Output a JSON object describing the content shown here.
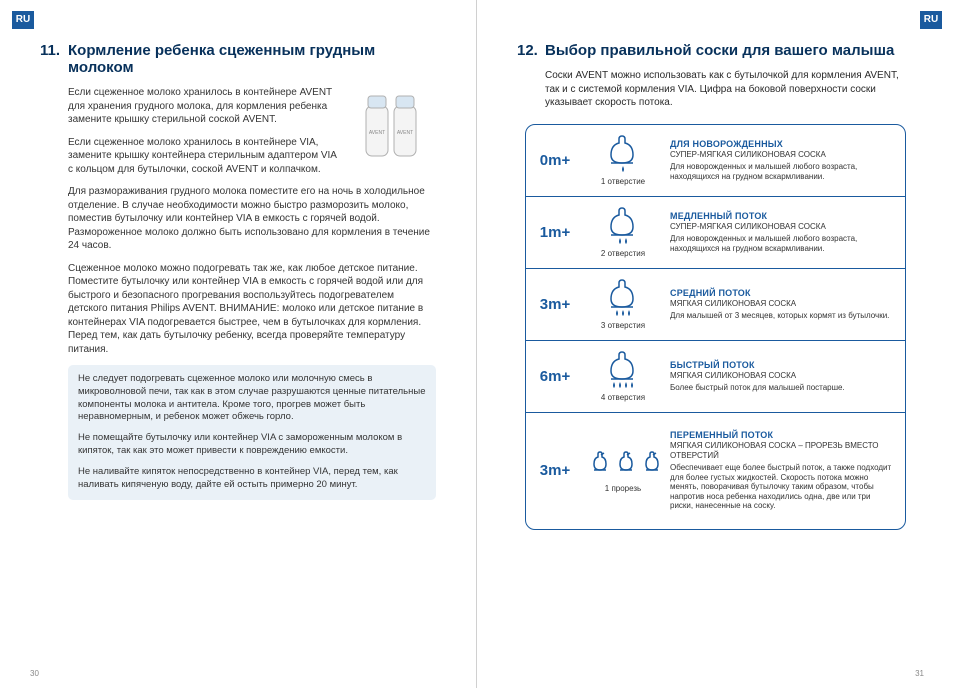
{
  "lang_badge": "RU",
  "pages": {
    "left_num": "30",
    "right_num": "31"
  },
  "colors": {
    "brand": "#1a5a9e",
    "heading": "#08315b",
    "box_bg": "#eaf1f7"
  },
  "left": {
    "section_num": "11.",
    "section_title": "Кормление ребенка сцеженным грудным молоком",
    "p1": "Если сцеженное молоко хранилось в контейнере AVENT для хранения грудного молока, для кормления ребенка замените крышку стерильной соской AVENT.",
    "p2": "Если сцеженное молоко хранилось в контейнере VIA, замените крышку контейнера стерильным адаптером VIA с кольцом для бутылочки, соской AVENT и колпачком.",
    "p3": "Для размораживания грудного молока поместите его на ночь в холодильное отделение. В случае необходимости можно быстро разморозить молоко, поместив бутылочку или контейнер VIA в емкость с горячей водой. Размороженное молоко должно быть использовано для кормления в течение 24 часов.",
    "p4": "Сцеженное молоко можно подогревать так же, как любое детское питание. Поместите бутылочку или контейнер VIA в емкость с горячей водой или для быстрого и безопасного прогревания воспользуйтесь подогревателем детского питания Philips AVENT. ВНИМАНИЕ: молоко или детское питание в контейнерах VIA подогревается быстрее, чем в бутылочках для кормления. Перед тем, как дать бутылочку ребенку, всегда проверяйте температуру питания.",
    "warn1": "Не следует подогревать сцеженное молоко или молочную смесь в микроволновой печи, так как в этом случае разрушаются ценные питательные компоненты молока и антитела. Кроме того, прогрев может быть неравномерным, и ребенок может обжечь горло.",
    "warn2": "Не помещайте бутылочку или контейнер VIA с замороженным молоком в кипяток, так как это может привести к повреждению емкости.",
    "warn3": "Не наливайте кипяток непосредственно в контейнер VIA, перед тем, как наливать кипяченую воду, дайте ей остыть примерно 20 минут."
  },
  "right": {
    "section_num": "12.",
    "section_title": "Выбор правильной соски для вашего малыша",
    "intro": "Соски AVENT можно использовать как с бутылочкой для кормления AVENT, так и с системой кормления VIA. Цифра на боковой поверхности соски указывает скорость потока.",
    "rows": [
      {
        "age": "0m+",
        "holes_label": "1 отверстие",
        "drops": 1,
        "title": "ДЛЯ НОВОРОЖДЕННЫХ",
        "sub": "СУПЕР-МЯГКАЯ СИЛИКОНОВАЯ СОСКА",
        "text": "Для новорожденных и малышей любого возраста, находящихся на грудном вскармливании."
      },
      {
        "age": "1m+",
        "holes_label": "2 отверстия",
        "drops": 2,
        "title": "МЕДЛЕННЫЙ ПОТОК",
        "sub": "СУПЕР-МЯГКАЯ СИЛИКОНОВАЯ СОСКА",
        "text": "Для новорожденных и малышей любого возраста, находящихся на грудном вскармливании."
      },
      {
        "age": "3m+",
        "holes_label": "3 отверстия",
        "drops": 3,
        "title": "СРЕДНИЙ ПОТОК",
        "sub": "МЯГКАЯ СИЛИКОНОВАЯ СОСКА",
        "text": "Для малышей от 3 месяцев, которых кормят из бутылочки."
      },
      {
        "age": "6m+",
        "holes_label": "4 отверстия",
        "drops": 4,
        "title": "БЫСТРЫЙ ПОТОК",
        "sub": "МЯГКАЯ СИЛИКОНОВАЯ СОСКА",
        "text": "Более быстрый поток для малышей постарше."
      },
      {
        "age": "3m+",
        "holes_label": "1 прорезь",
        "drops": 0,
        "multi": 3,
        "title": "ПЕРЕМЕННЫЙ ПОТОК",
        "sub": "МЯГКАЯ СИЛИКОНОВАЯ СОСКА – ПРОРЕЗЬ ВМЕСТО ОТВЕРСТИЙ",
        "text": "Обеспечивает еще более быстрый поток, а также подходит для более густых жидкостей. Скорость потока можно менять, поворачивая бутылочку таким образом, чтобы напротив носа ребенка находились одна, две или три риски, нанесенные на соску."
      }
    ]
  }
}
